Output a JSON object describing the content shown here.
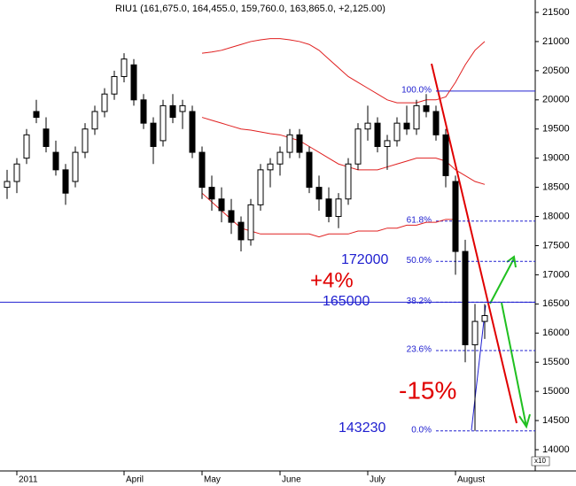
{
  "chart_data": {
    "type": "candlestick",
    "title": "RIU1 (161,675.0, 164,455.0, 159,760.0, 163,865.0, +2,125.00)",
    "categories": [
      null,
      "2011",
      null,
      null,
      null,
      null,
      null,
      null,
      null,
      null,
      null,
      null,
      "April",
      null,
      null,
      null,
      null,
      null,
      null,
      null,
      "May",
      null,
      null,
      null,
      null,
      null,
      null,
      null,
      "June",
      null,
      null,
      null,
      null,
      null,
      null,
      null,
      null,
      "July",
      null,
      null,
      null,
      null,
      null,
      null,
      null,
      null,
      "August",
      null,
      null,
      null
    ],
    "open": [
      18500,
      18600,
      19000,
      19800,
      19500,
      19100,
      18800,
      18600,
      19100,
      19500,
      19800,
      20100,
      20400,
      20600,
      20000,
      19600,
      19300,
      19900,
      19800,
      19800,
      19100,
      18500,
      18300,
      18100,
      17900,
      17600,
      18200,
      18800,
      18900,
      19100,
      19400,
      19100,
      18500,
      18300,
      18000,
      18300,
      18900,
      19500,
      19600,
      19200,
      19300,
      19600,
      19500,
      19900,
      19800,
      19400,
      18600,
      17400,
      15800,
      16200
    ],
    "high": [
      18800,
      19000,
      19500,
      20000,
      19700,
      19300,
      18900,
      19200,
      19600,
      19900,
      20200,
      20500,
      20800,
      20700,
      20100,
      19700,
      20000,
      20100,
      20000,
      19900,
      19200,
      18700,
      18500,
      18300,
      18000,
      18300,
      18900,
      19000,
      19200,
      19500,
      19500,
      19200,
      18700,
      18500,
      18400,
      19000,
      19600,
      19900,
      19700,
      19400,
      19700,
      19900,
      20000,
      20100,
      19900,
      19500,
      18700,
      17600,
      16500,
      16500
    ],
    "low": [
      18300,
      18400,
      18900,
      19600,
      19100,
      18700,
      18200,
      18500,
      19000,
      19400,
      19700,
      20000,
      20300,
      19900,
      19500,
      18900,
      19200,
      19600,
      19500,
      19000,
      18300,
      18100,
      17900,
      17700,
      17400,
      17500,
      18100,
      18500,
      18700,
      19000,
      19000,
      18400,
      18100,
      17900,
      17800,
      18200,
      18800,
      19300,
      19100,
      18800,
      19200,
      19400,
      19400,
      19700,
      19300,
      18500,
      17000,
      15500,
      14323,
      15900
    ],
    "close": [
      18600,
      18900,
      19400,
      19700,
      19200,
      18800,
      18400,
      19100,
      19500,
      19800,
      20100,
      20400,
      20700,
      20000,
      19600,
      19200,
      19900,
      19700,
      19900,
      19100,
      18500,
      18300,
      18100,
      17900,
      17600,
      18200,
      18800,
      18900,
      19100,
      19400,
      19100,
      18500,
      18300,
      18000,
      18300,
      18900,
      19500,
      19600,
      19200,
      19300,
      19600,
      19500,
      19900,
      19800,
      19400,
      18700,
      17400,
      15800,
      16200,
      16300
    ],
    "up_color": "#ffffff",
    "down_color": "#000000",
    "bands": [
      {
        "color": "#e02020",
        "values": [
          null,
          null,
          null,
          null,
          null,
          null,
          null,
          null,
          null,
          null,
          null,
          null,
          null,
          null,
          null,
          null,
          null,
          null,
          null,
          null,
          20800,
          20820,
          20850,
          20900,
          20950,
          21000,
          21030,
          21050,
          21050,
          21030,
          21000,
          20950,
          20850,
          20700,
          20550,
          20400,
          20300,
          20200,
          20100,
          20000,
          19950,
          19950,
          19950,
          20000,
          20000,
          20050,
          20300,
          20600,
          20850,
          21000
        ]
      },
      {
        "color": "#e02020",
        "values": [
          null,
          null,
          null,
          null,
          null,
          null,
          null,
          null,
          null,
          null,
          null,
          null,
          null,
          null,
          null,
          null,
          null,
          null,
          null,
          null,
          19700,
          19650,
          19600,
          19550,
          19500,
          19480,
          19450,
          19420,
          19400,
          19350,
          19300,
          19200,
          19100,
          19000,
          18900,
          18850,
          18800,
          18800,
          18800,
          18850,
          18900,
          18950,
          19000,
          19000,
          19000,
          18950,
          18800,
          18700,
          18600,
          18550
        ]
      },
      {
        "color": "#e02020",
        "values": [
          null,
          null,
          null,
          null,
          null,
          null,
          null,
          null,
          null,
          null,
          null,
          null,
          null,
          null,
          null,
          null,
          null,
          null,
          null,
          null,
          18400,
          18250,
          18100,
          17950,
          17800,
          17750,
          17700,
          17700,
          17700,
          17700,
          17700,
          17700,
          17650,
          17700,
          17700,
          17700,
          17750,
          17750,
          17750,
          17800,
          17800,
          17850,
          17850,
          17900,
          17900,
          17950,
          17950,
          null,
          null,
          null
        ]
      }
    ],
    "levels": [
      {
        "label": "100.0%",
        "value": 20150
      },
      {
        "label": "61.8%",
        "value": 17920
      },
      {
        "label": "50.0%",
        "value": 17230
      },
      {
        "label": "38.2%",
        "value": 16530
      },
      {
        "label": "23.6%",
        "value": 15700
      },
      {
        "label": "0.0%",
        "value": 14323
      }
    ],
    "level_color": "#2020d0",
    "horizontal_line": 16530,
    "annotations": [
      "172000",
      "165000",
      "143230",
      "+4%",
      "-15%"
    ],
    "scale_note": "x10",
    "ylim": [
      14000,
      21500
    ],
    "yticks": [
      14000,
      14500,
      15000,
      15500,
      16000,
      16500,
      17000,
      17500,
      18000,
      18500,
      19000,
      19500,
      20000,
      20500,
      21000,
      21500
    ],
    "grid": false
  }
}
